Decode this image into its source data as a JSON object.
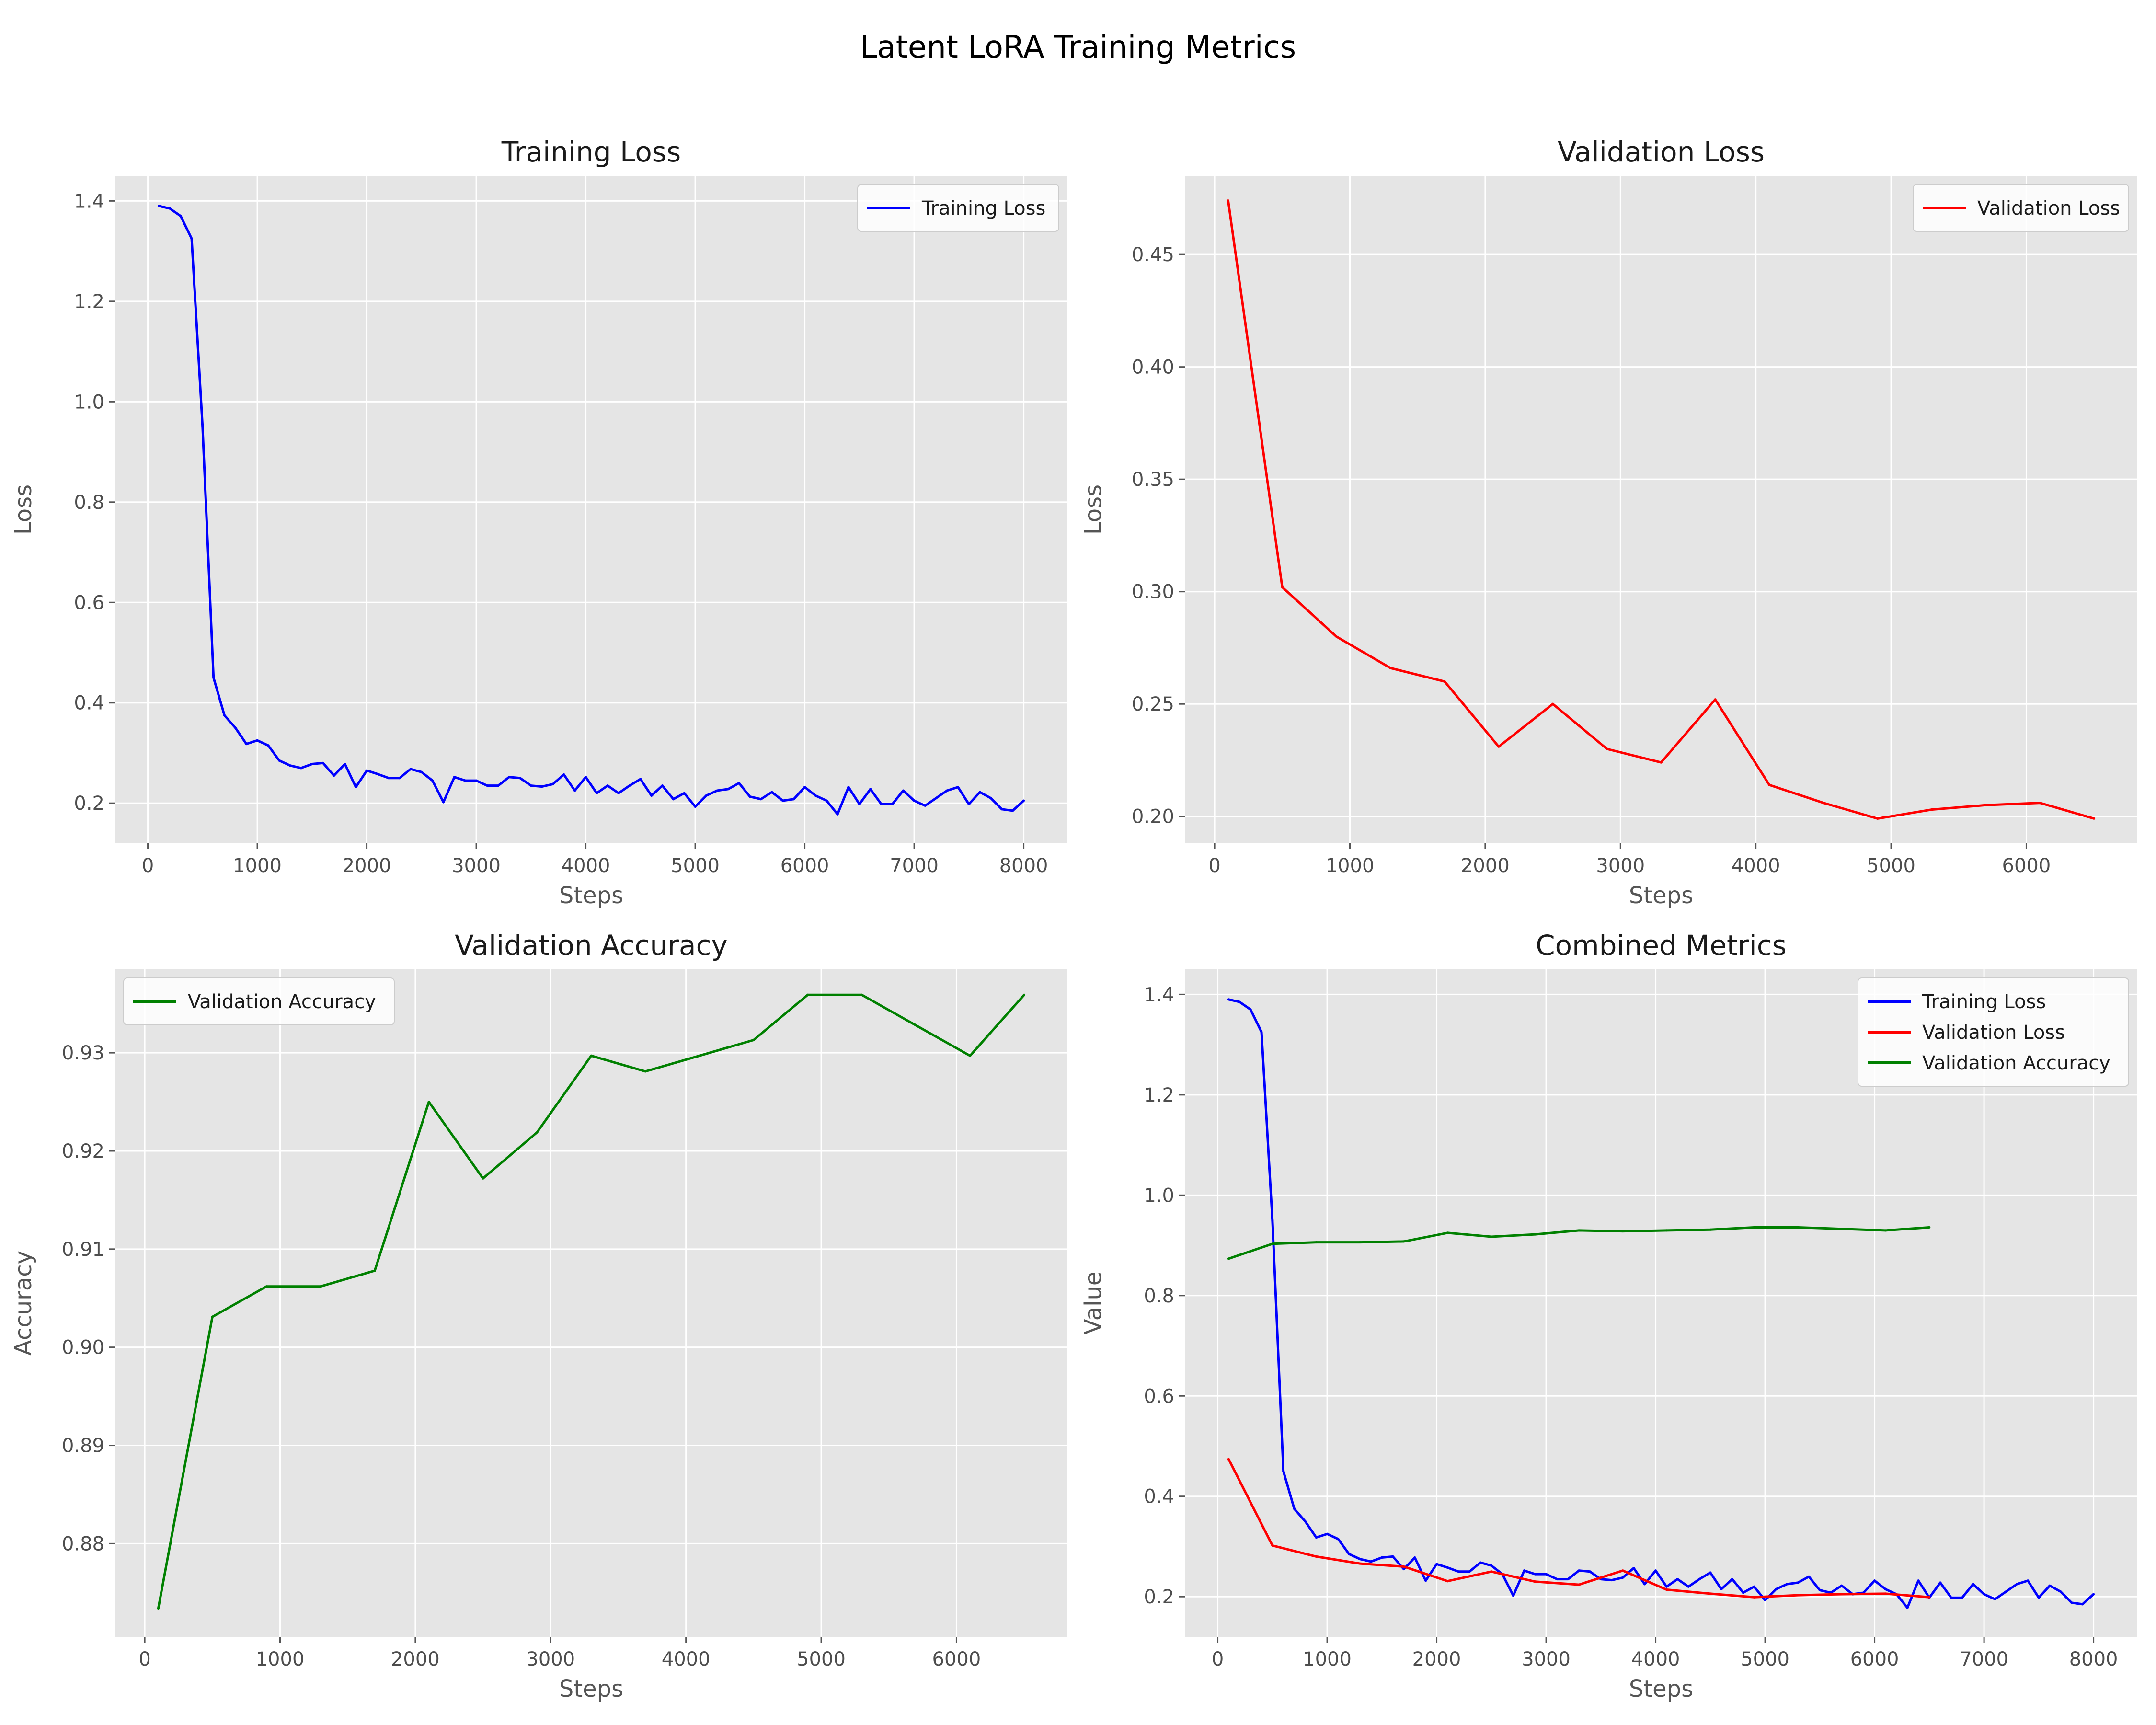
{
  "figure": {
    "title": "Latent LoRA Training Metrics"
  },
  "colors": {
    "training_loss": "#0000ff",
    "validation_loss": "#ff0000",
    "validation_accuracy": "#008000",
    "panel_background": "#e5e5e5",
    "grid": "#ffffff"
  },
  "chart_data": [
    {
      "id": "train",
      "type": "line",
      "title": "Training Loss",
      "xlabel": "Steps",
      "ylabel": "Loss",
      "xlim": [
        -300,
        8400
      ],
      "ylim": [
        0.12,
        1.45
      ],
      "xticks": [
        0,
        1000,
        2000,
        3000,
        4000,
        5000,
        6000,
        7000,
        8000
      ],
      "yticks": [
        0.2,
        0.4,
        0.6,
        0.8,
        1.0,
        1.2,
        1.4
      ],
      "ytick_decimals": 1,
      "grid": true,
      "legend": "top-right",
      "series": [
        {
          "name": "Training Loss",
          "color": "#0000ff",
          "ref": "train_loss"
        }
      ]
    },
    {
      "id": "val",
      "type": "line",
      "title": "Validation Loss",
      "xlabel": "Steps",
      "ylabel": "Loss",
      "xlim": [
        -220,
        6820
      ],
      "ylim": [
        0.188,
        0.485
      ],
      "xticks": [
        0,
        1000,
        2000,
        3000,
        4000,
        5000,
        6000
      ],
      "yticks": [
        0.2,
        0.25,
        0.3,
        0.35,
        0.4,
        0.45
      ],
      "ytick_decimals": 2,
      "grid": true,
      "legend": "top-right",
      "series": [
        {
          "name": "Validation Loss",
          "color": "#ff0000",
          "ref": "val_loss"
        }
      ]
    },
    {
      "id": "acc",
      "type": "line",
      "title": "Validation Accuracy",
      "xlabel": "Steps",
      "ylabel": "Accuracy",
      "xlim": [
        -220,
        6820
      ],
      "ylim": [
        0.8705,
        0.9385
      ],
      "xticks": [
        0,
        1000,
        2000,
        3000,
        4000,
        5000,
        6000
      ],
      "yticks": [
        0.88,
        0.89,
        0.9,
        0.91,
        0.92,
        0.93
      ],
      "ytick_decimals": 2,
      "grid": true,
      "legend": "top-left",
      "series": [
        {
          "name": "Validation Accuracy",
          "color": "#008000",
          "ref": "val_acc"
        }
      ]
    },
    {
      "id": "combined",
      "type": "line",
      "title": "Combined Metrics",
      "xlabel": "Steps",
      "ylabel": "Value",
      "xlim": [
        -300,
        8400
      ],
      "ylim": [
        0.12,
        1.45
      ],
      "xticks": [
        0,
        1000,
        2000,
        3000,
        4000,
        5000,
        6000,
        7000,
        8000
      ],
      "yticks": [
        0.2,
        0.4,
        0.6,
        0.8,
        1.0,
        1.2,
        1.4
      ],
      "ytick_decimals": 1,
      "grid": true,
      "legend": "top-right",
      "series": [
        {
          "name": "Training Loss",
          "color": "#0000ff",
          "ref": "train_loss"
        },
        {
          "name": "Validation Loss",
          "color": "#ff0000",
          "ref": "val_loss"
        },
        {
          "name": "Validation Accuracy",
          "color": "#008000",
          "ref": "val_acc"
        }
      ]
    }
  ],
  "series_data": {
    "train_loss": {
      "x": [
        100,
        200,
        300,
        400,
        500,
        600,
        700,
        800,
        900,
        1000,
        1100,
        1200,
        1300,
        1400,
        1500,
        1600,
        1700,
        1800,
        1900,
        2000,
        2100,
        2200,
        2300,
        2400,
        2500,
        2600,
        2700,
        2800,
        2900,
        3000,
        3100,
        3200,
        3300,
        3400,
        3500,
        3600,
        3700,
        3800,
        3900,
        4000,
        4100,
        4200,
        4300,
        4400,
        4500,
        4600,
        4700,
        4800,
        4900,
        5000,
        5100,
        5200,
        5300,
        5400,
        5500,
        5600,
        5700,
        5800,
        5900,
        6000,
        6100,
        6200,
        6300,
        6400,
        6500,
        6600,
        6700,
        6800,
        6900,
        7000,
        7100,
        7200,
        7300,
        7400,
        7500,
        7600,
        7700,
        7800,
        7900,
        8000
      ],
      "y": [
        1.39,
        1.385,
        1.37,
        1.325,
        0.95,
        0.45,
        0.375,
        0.35,
        0.318,
        0.325,
        0.315,
        0.285,
        0.275,
        0.27,
        0.278,
        0.28,
        0.255,
        0.278,
        0.232,
        0.265,
        0.258,
        0.25,
        0.25,
        0.268,
        0.262,
        0.245,
        0.202,
        0.252,
        0.245,
        0.245,
        0.235,
        0.235,
        0.252,
        0.25,
        0.235,
        0.233,
        0.238,
        0.257,
        0.225,
        0.252,
        0.22,
        0.235,
        0.22,
        0.235,
        0.248,
        0.215,
        0.235,
        0.208,
        0.22,
        0.193,
        0.215,
        0.225,
        0.228,
        0.24,
        0.213,
        0.208,
        0.222,
        0.205,
        0.208,
        0.232,
        0.215,
        0.205,
        0.178,
        0.232,
        0.198,
        0.228,
        0.198,
        0.198,
        0.225,
        0.205,
        0.195,
        0.21,
        0.225,
        0.232,
        0.198,
        0.222,
        0.21,
        0.188,
        0.185,
        0.205
      ]
    },
    "val_loss": {
      "x": [
        100,
        500,
        900,
        1300,
        1700,
        2100,
        2500,
        2900,
        3300,
        3700,
        4100,
        4500,
        4900,
        5300,
        5700,
        6100,
        6500
      ],
      "y": [
        0.474,
        0.302,
        0.28,
        0.266,
        0.26,
        0.231,
        0.25,
        0.23,
        0.224,
        0.252,
        0.214,
        0.206,
        0.199,
        0.203,
        0.205,
        0.206,
        0.199
      ]
    },
    "val_acc": {
      "x": [
        100,
        500,
        900,
        1300,
        1700,
        2100,
        2500,
        2900,
        3300,
        3700,
        4100,
        4500,
        4900,
        5300,
        5700,
        6100,
        6500
      ],
      "y": [
        0.8734,
        0.9031,
        0.9062,
        0.9062,
        0.9078,
        0.925,
        0.9172,
        0.9219,
        0.9297,
        0.9281,
        0.9297,
        0.9313,
        0.9359,
        0.9359,
        0.9328,
        0.9297,
        0.9359
      ]
    }
  }
}
